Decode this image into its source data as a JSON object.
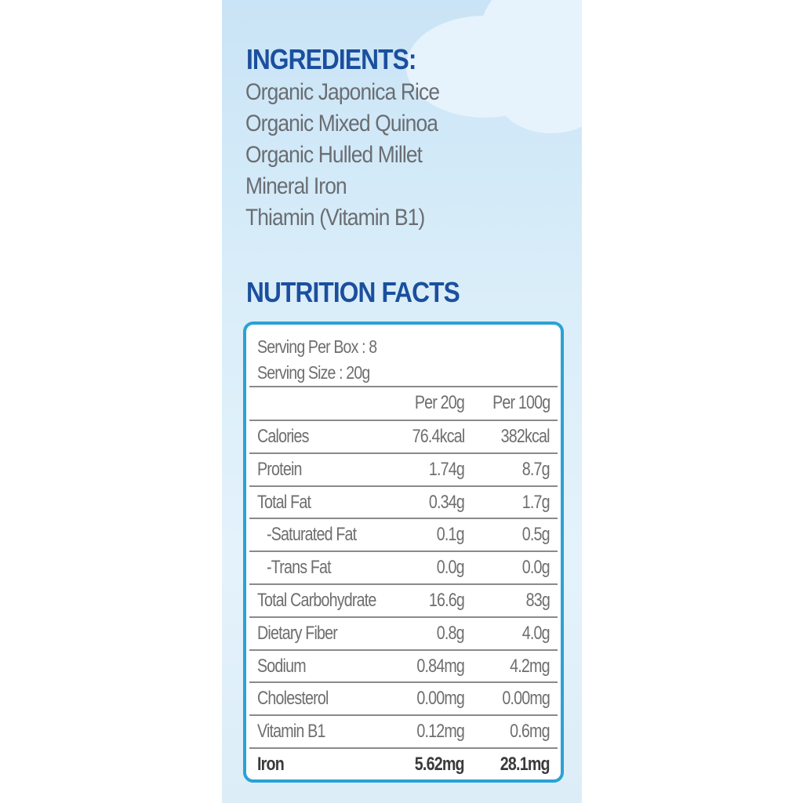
{
  "ingredients": {
    "title": "INGREDIENTS:",
    "items": [
      "Organic Japonica Rice",
      "Organic Mixed Quinoa",
      "Organic Hulled Millet",
      "Mineral Iron",
      "Thiamin (Vitamin B1)"
    ]
  },
  "nutrition": {
    "title": "NUTRITION FACTS",
    "serving_per_box": "Serving Per Box : 8",
    "serving_size": "Serving Size : 20g",
    "columns": [
      "Per 20g",
      "Per 100g"
    ],
    "rows": [
      {
        "label": "Calories",
        "per20": "76.4kcal",
        "per100": "382kcal"
      },
      {
        "label": "Protein",
        "per20": "1.74g",
        "per100": "8.7g"
      },
      {
        "label": "Total Fat",
        "per20": "0.34g",
        "per100": "1.7g"
      },
      {
        "label": "-Saturated Fat",
        "per20": "0.1g",
        "per100": "0.5g"
      },
      {
        "label": "-Trans Fat",
        "per20": "0.0g",
        "per100": "0.0g"
      },
      {
        "label": "Total Carbohydrate",
        "per20": "16.6g",
        "per100": "83g"
      },
      {
        "label": "Dietary Fiber",
        "per20": "0.8g",
        "per100": "4.0g"
      },
      {
        "label": "Sodium",
        "per20": "0.84mg",
        "per100": "4.2mg"
      },
      {
        "label": "Cholesterol",
        "per20": "0.00mg",
        "per100": "0.00mg"
      },
      {
        "label": "Vitamin B1",
        "per20": "0.12mg",
        "per100": "0.6mg"
      },
      {
        "label": "Iron",
        "per20": "5.62mg",
        "per100": "28.1mg"
      }
    ]
  },
  "colors": {
    "heading": "#1b4f9e",
    "border": "#2aa2d6",
    "text": "#6e6e6e"
  }
}
